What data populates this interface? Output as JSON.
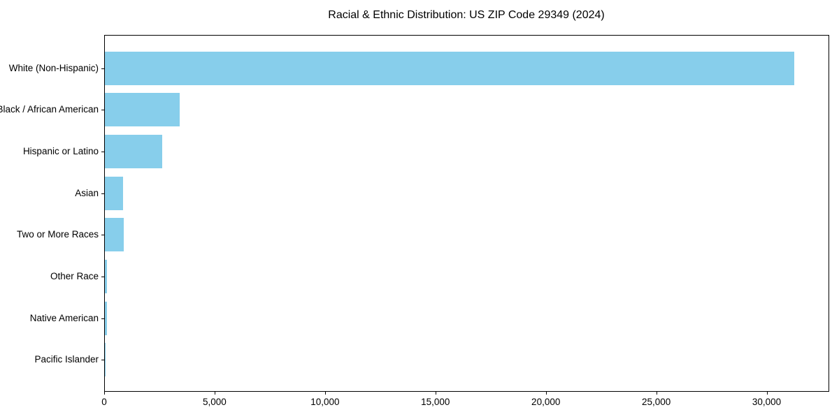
{
  "chart_data": {
    "type": "bar",
    "orientation": "horizontal",
    "title": "Racial & Ethnic Distribution: US ZIP Code 29349 (2024)",
    "categories": [
      "White (Non-Hispanic)",
      "Black / African American",
      "Hispanic or Latino",
      "Asian",
      "Two or More Races",
      "Other Race",
      "Native American",
      "Pacific Islander"
    ],
    "values": [
      31200,
      3400,
      2600,
      820,
      850,
      80,
      90,
      10
    ],
    "bar_color": "#87CEEB",
    "xlabel": "",
    "ylabel": "",
    "xlim": [
      0,
      32800
    ],
    "x_ticks": [
      0,
      5000,
      10000,
      15000,
      20000,
      25000,
      30000
    ],
    "x_tick_labels": [
      "0",
      "5,000",
      "10,000",
      "15,000",
      "20,000",
      "25,000",
      "30,000"
    ],
    "grid": false,
    "legend": "none",
    "background_color": "#ffffff",
    "axis_color": "#000000"
  }
}
